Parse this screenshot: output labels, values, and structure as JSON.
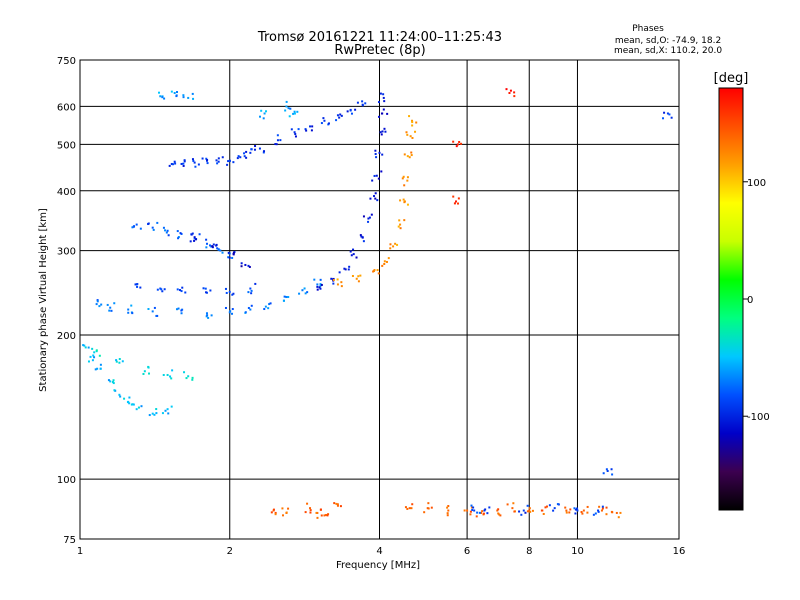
{
  "chart_data": {
    "type": "scatter",
    "title": "Tromsø 20161221 11:24:00–11:25:43",
    "subtitle": "RwPretec (8p)",
    "xlabel": "Frequency [MHz]",
    "ylabel": "Stationary phase Virtual Height [km]",
    "x_scale": "log",
    "y_scale": "log",
    "xlim": [
      1,
      16
    ],
    "ylim": [
      75,
      750
    ],
    "x_ticks": [
      1,
      2,
      4,
      6,
      8,
      10,
      16
    ],
    "y_ticks": [
      75,
      100,
      200,
      300,
      400,
      500,
      600,
      750
    ],
    "x_grid": [
      2,
      4,
      6,
      8,
      10
    ],
    "y_grid": [
      100,
      200,
      300,
      400,
      500,
      600
    ],
    "grid": true,
    "phase_stats": {
      "title": "Phases",
      "line1": "mean, sd,O: -74.9, 18.2",
      "line2": "mean, sd,X: 110.2, 20.0"
    },
    "colorbar": {
      "label": "[deg]",
      "range": [
        -180,
        180
      ],
      "ticks": [
        100,
        0,
        -100
      ],
      "colors": [
        "#000000",
        "#3c0050",
        "#0000c8",
        "#0050ff",
        "#00c8ff",
        "#00ff80",
        "#00ff00",
        "#c8ff00",
        "#ffff00",
        "#ffa000",
        "#ff5000",
        "#ff0000"
      ]
    },
    "series": [
      {
        "phase": -95,
        "points": [
          [
            1.55,
            460
          ],
          [
            1.6,
            455
          ],
          [
            1.7,
            458
          ],
          [
            1.8,
            462
          ],
          [
            1.9,
            460
          ],
          [
            2.0,
            462
          ],
          [
            2.1,
            470
          ],
          [
            2.2,
            480
          ],
          [
            2.3,
            490
          ],
          [
            2.5,
            510
          ],
          [
            2.7,
            530
          ],
          [
            2.9,
            545
          ],
          [
            3.1,
            560
          ],
          [
            3.3,
            575
          ],
          [
            3.5,
            590
          ],
          [
            3.7,
            605
          ]
        ]
      },
      {
        "phase": -80,
        "points": [
          [
            1.3,
            340
          ],
          [
            1.4,
            335
          ],
          [
            1.5,
            330
          ],
          [
            1.6,
            325
          ],
          [
            1.7,
            318
          ],
          [
            1.8,
            310
          ],
          [
            1.9,
            302
          ],
          [
            2.0,
            296
          ]
        ]
      },
      {
        "phase": -110,
        "points": [
          [
            1.7,
            320
          ],
          [
            1.85,
            305
          ],
          [
            2.0,
            290
          ],
          [
            2.15,
            280
          ]
        ]
      },
      {
        "phase": -70,
        "points": [
          [
            1.08,
            232
          ],
          [
            1.15,
            228
          ],
          [
            1.25,
            226
          ],
          [
            1.4,
            224
          ],
          [
            1.6,
            222
          ],
          [
            1.8,
            222
          ],
          [
            2.0,
            223
          ],
          [
            2.2,
            226
          ],
          [
            2.4,
            232
          ],
          [
            2.6,
            240
          ],
          [
            2.8,
            248
          ],
          [
            3.0,
            255
          ]
        ]
      },
      {
        "phase": -85,
        "points": [
          [
            1.3,
            255
          ],
          [
            1.45,
            250
          ],
          [
            1.6,
            247
          ],
          [
            1.8,
            245
          ],
          [
            2.0,
            246
          ],
          [
            2.2,
            250
          ]
        ]
      },
      {
        "phase": -105,
        "points": [
          [
            3.0,
            252
          ],
          [
            3.2,
            262
          ],
          [
            3.4,
            275
          ],
          [
            3.55,
            295
          ],
          [
            3.7,
            320
          ],
          [
            3.8,
            350
          ],
          [
            3.9,
            390
          ],
          [
            3.95,
            430
          ],
          [
            4.0,
            480
          ],
          [
            4.02,
            530
          ],
          [
            4.05,
            580
          ],
          [
            4.08,
            625
          ]
        ]
      },
      {
        "phase": 120,
        "points": [
          [
            3.3,
            255
          ],
          [
            3.6,
            262
          ],
          [
            3.9,
            272
          ],
          [
            4.1,
            285
          ],
          [
            4.3,
            310
          ],
          [
            4.4,
            340
          ],
          [
            4.5,
            380
          ],
          [
            4.55,
            420
          ],
          [
            4.6,
            470
          ],
          [
            4.62,
            520
          ],
          [
            4.65,
            560
          ]
        ]
      },
      {
        "phase": -50,
        "points": [
          [
            1.02,
            190
          ],
          [
            1.05,
            180
          ],
          [
            1.1,
            170
          ],
          [
            1.15,
            160
          ],
          [
            1.2,
            150
          ],
          [
            1.25,
            145
          ],
          [
            1.3,
            140
          ],
          [
            1.4,
            137
          ],
          [
            1.5,
            140
          ]
        ]
      },
      {
        "phase": -40,
        "points": [
          [
            1.08,
            185
          ],
          [
            1.2,
            175
          ],
          [
            1.35,
            168
          ],
          [
            1.5,
            165
          ],
          [
            1.65,
            164
          ]
        ]
      },
      {
        "phase": -60,
        "points": [
          [
            1.45,
            630
          ],
          [
            1.55,
            640
          ],
          [
            1.65,
            625
          ],
          [
            2.35,
            580
          ],
          [
            2.6,
            600
          ],
          [
            2.7,
            585
          ]
        ]
      },
      {
        "phase": 140,
        "points": [
          [
            2.45,
            86
          ],
          [
            2.6,
            85
          ],
          [
            2.9,
            87
          ],
          [
            3.0,
            85
          ],
          [
            3.1,
            84
          ],
          [
            3.3,
            88
          ],
          [
            4.6,
            87
          ],
          [
            5.0,
            87
          ],
          [
            5.5,
            86
          ],
          [
            6.0,
            86
          ],
          [
            6.4,
            85
          ],
          [
            6.9,
            86
          ],
          [
            7.4,
            87
          ],
          [
            8.0,
            86
          ],
          [
            8.5,
            86
          ],
          [
            9.5,
            86
          ],
          [
            10.3,
            86
          ],
          [
            11.2,
            86
          ],
          [
            12.0,
            85
          ]
        ]
      },
      {
        "phase": -90,
        "points": [
          [
            6.2,
            86
          ],
          [
            6.5,
            86
          ],
          [
            7.8,
            86
          ],
          [
            9.0,
            87
          ],
          [
            10.0,
            86
          ],
          [
            11.0,
            86
          ],
          [
            11.5,
            104
          ],
          [
            15.2,
            580
          ]
        ]
      },
      {
        "phase": 170,
        "points": [
          [
            7.3,
            640
          ],
          [
            5.7,
            380
          ],
          [
            5.75,
            500
          ]
        ]
      }
    ]
  }
}
